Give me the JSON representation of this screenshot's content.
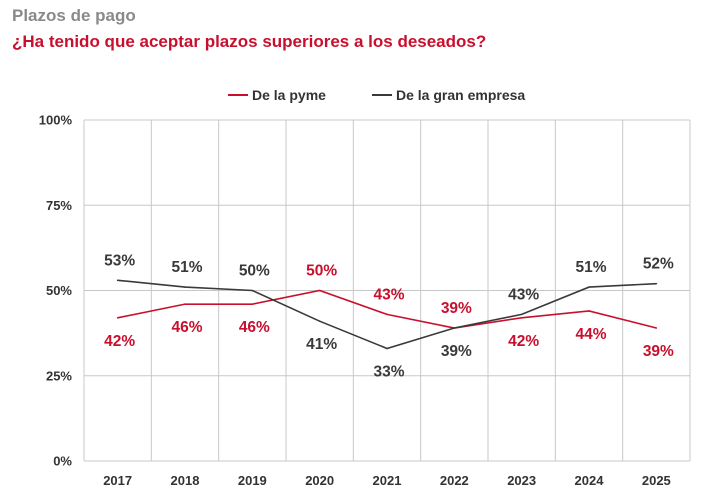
{
  "header": {
    "title": "Plazos de pago",
    "subtitle": "¿Ha tenido que aceptar plazos superiores a los deseados?"
  },
  "colors": {
    "pyme": "#c8102e",
    "gran_empresa": "#3a3a3a",
    "grid": "#c8c8c8"
  },
  "chart_data": {
    "type": "line",
    "title": "",
    "xlabel": "",
    "ylabel": "",
    "ylim": [
      0,
      100
    ],
    "yticks": [
      "0%",
      "25%",
      "50%",
      "75%",
      "100%"
    ],
    "x": [
      "2017",
      "2018",
      "2019",
      "2020",
      "2021",
      "2022",
      "2023",
      "2024",
      "2025"
    ],
    "legend_position": "top-center",
    "grid": true,
    "series": [
      {
        "name": "De la pyme",
        "color": "#c8102e",
        "values": [
          42,
          46,
          46,
          50,
          43,
          39,
          42,
          44,
          39
        ],
        "labels": [
          "42%",
          "46%",
          "46%",
          "50%",
          "43%",
          "39%",
          "42%",
          "44%",
          "39%"
        ]
      },
      {
        "name": "De la gran empresa",
        "color": "#3a3a3a",
        "values": [
          53,
          51,
          50,
          41,
          33,
          39,
          43,
          51,
          52
        ],
        "labels": [
          "53%",
          "51%",
          "50%",
          "41%",
          "33%",
          "39%",
          "43%",
          "51%",
          "52%"
        ]
      }
    ]
  }
}
